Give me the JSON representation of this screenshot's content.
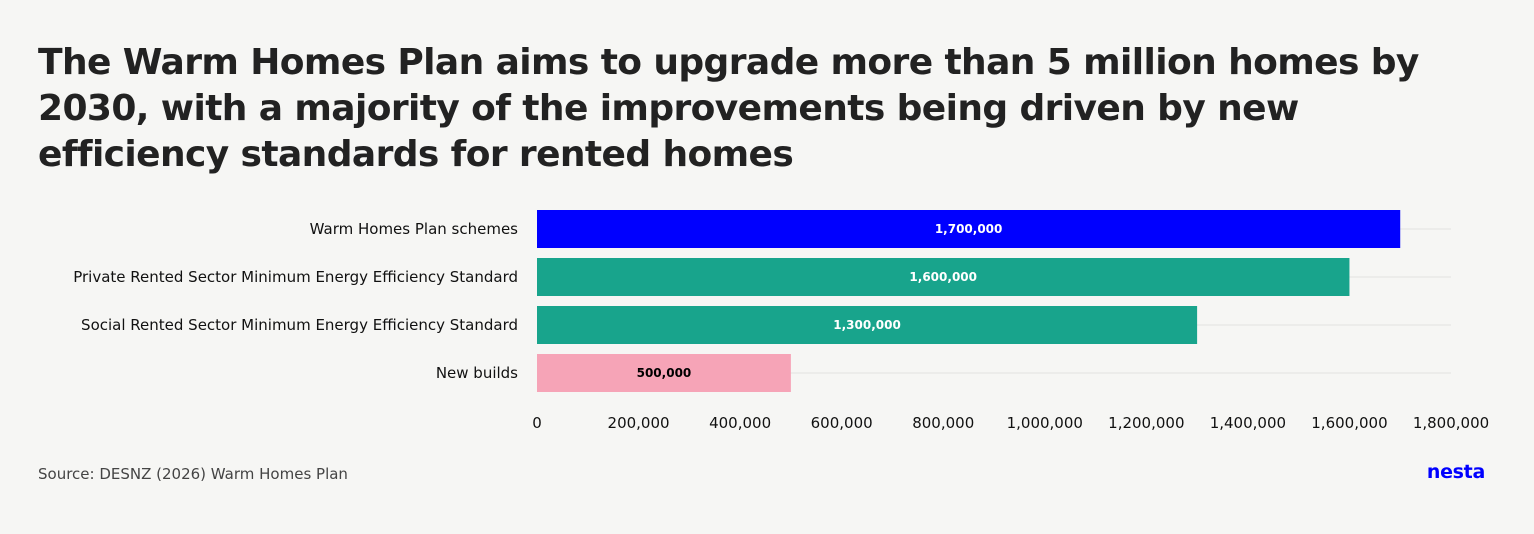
{
  "title": "The Warm Homes Plan aims to upgrade more than 5 million homes by 2030, with a majority of the improvements being driven by new efficiency standards for rented homes",
  "source": "Source: DESNZ (2026) Warm Homes Plan",
  "logo": "nesta",
  "chart_data": {
    "type": "bar",
    "orientation": "horizontal",
    "categories": [
      "Warm Homes Plan schemes",
      "Private Rented Sector Minimum Energy Efficiency Standard",
      "Social Rented Sector Minimum Energy Efficiency Standard",
      "New builds"
    ],
    "values": [
      1700000,
      1600000,
      1300000,
      500000
    ],
    "data_labels": [
      "1,700,000",
      "1,600,000",
      "1,300,000",
      "500,000"
    ],
    "bar_colors": [
      "#0000ff",
      "#18a48c",
      "#18a48c",
      "#f6a4b7"
    ],
    "data_label_colors": [
      "#ffffff",
      "#ffffff",
      "#ffffff",
      "#000000"
    ],
    "xlim": [
      0,
      1800000
    ],
    "xticks": [
      0,
      200000,
      400000,
      600000,
      800000,
      1000000,
      1200000,
      1400000,
      1600000,
      1800000
    ],
    "xtick_labels": [
      "0",
      "200,000",
      "400,000",
      "600,000",
      "800,000",
      "1,000,000",
      "1,200,000",
      "1,400,000",
      "1,600,000",
      "1,800,000"
    ],
    "xlabel": "",
    "ylabel": "",
    "grid": "horizontal lines at each category",
    "legend": "none"
  }
}
